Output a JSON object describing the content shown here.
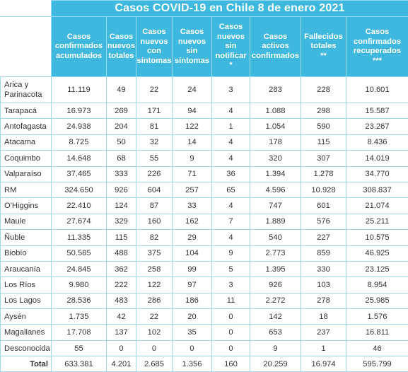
{
  "title": "Casos COVID-19 en Chile 8 de enero 2021",
  "columns": [
    "Casos\nconfirmados\nacumulados",
    "Casos\nnuevos\ntotales",
    "Casos\nnuevos\ncon\nsíntomas",
    "Casos\nnuevos\nsin\nsíntomas",
    "Casos\nnuevos\nsin\nnotificar\n*",
    "Casos\nactivos\nconfirmados",
    "Fallecidos\ntotales\n**",
    "Casos\nconfirmados\nrecuperados\n***"
  ],
  "rows": [
    {
      "region": "Arica y\nParinacota",
      "values": [
        "11.119",
        "49",
        "22",
        "24",
        "3",
        "283",
        "228",
        "10.601"
      ]
    },
    {
      "region": "Tarapacá",
      "values": [
        "16.973",
        "269",
        "171",
        "94",
        "4",
        "1.088",
        "298",
        "15.587"
      ]
    },
    {
      "region": "Antofagasta",
      "values": [
        "24.938",
        "204",
        "81",
        "122",
        "1",
        "1.054",
        "590",
        "23.267"
      ]
    },
    {
      "region": "Atacama",
      "values": [
        "8.725",
        "50",
        "32",
        "14",
        "4",
        "178",
        "115",
        "8.436"
      ]
    },
    {
      "region": "Coquimbo",
      "values": [
        "14.648",
        "68",
        "55",
        "9",
        "4",
        "320",
        "307",
        "14.019"
      ]
    },
    {
      "region": "Valparaíso",
      "values": [
        "37.465",
        "333",
        "226",
        "71",
        "36",
        "1.394",
        "1.278",
        "34.770"
      ]
    },
    {
      "region": "RM",
      "values": [
        "324.650",
        "926",
        "604",
        "257",
        "65",
        "4.596",
        "10.928",
        "308.837"
      ]
    },
    {
      "region": "O'Higgins",
      "values": [
        "22.410",
        "124",
        "87",
        "33",
        "4",
        "747",
        "601",
        "21.074"
      ]
    },
    {
      "region": "Maule",
      "values": [
        "27.674",
        "329",
        "160",
        "162",
        "7",
        "1.889",
        "576",
        "25.211"
      ]
    },
    {
      "region": "Ñuble",
      "values": [
        "11.335",
        "115",
        "82",
        "29",
        "4",
        "540",
        "227",
        "10.575"
      ]
    },
    {
      "region": "Biobío",
      "values": [
        "50.585",
        "488",
        "375",
        "104",
        "9",
        "2.773",
        "859",
        "46.925"
      ]
    },
    {
      "region": "Araucanía",
      "values": [
        "24.845",
        "362",
        "258",
        "99",
        "5",
        "1.395",
        "330",
        "23.125"
      ]
    },
    {
      "region": "Los Ríos",
      "values": [
        "9.980",
        "222",
        "122",
        "97",
        "3",
        "926",
        "103",
        "8.954"
      ]
    },
    {
      "region": "Los Lagos",
      "values": [
        "28.536",
        "483",
        "286",
        "186",
        "11",
        "2.272",
        "278",
        "25.985"
      ]
    },
    {
      "region": "Aysén",
      "values": [
        "1.735",
        "42",
        "22",
        "20",
        "0",
        "142",
        "18",
        "1.576"
      ]
    },
    {
      "region": "Magallanes",
      "values": [
        "17.708",
        "137",
        "102",
        "35",
        "0",
        "653",
        "237",
        "16.811"
      ]
    },
    {
      "region": "Desconocida",
      "values": [
        "55",
        "0",
        "0",
        "0",
        "0",
        "9",
        "1",
        "46"
      ]
    }
  ],
  "total": {
    "label": "Total",
    "values": [
      "633.381",
      "4.201",
      "2.685",
      "1.356",
      "160",
      "20.259",
      "16.974",
      "595.799"
    ]
  },
  "colors": {
    "header_bg": "#3fb8e0",
    "header_text": "#ffffff",
    "border": "#9fd8ec",
    "text": "#333333"
  }
}
